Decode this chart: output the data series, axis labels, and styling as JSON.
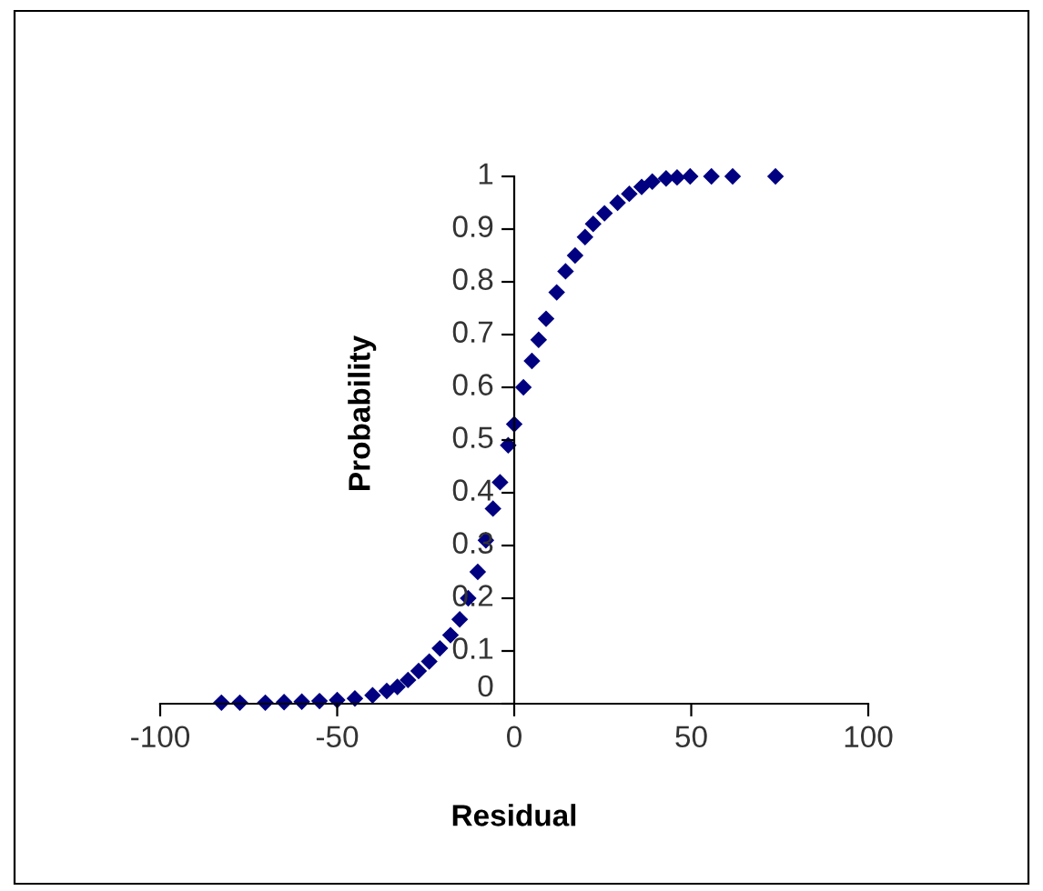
{
  "chart_data": {
    "type": "scatter",
    "xlabel": "Residual",
    "ylabel": "Probability",
    "x": [
      -82.7,
      -77.5,
      -70.3,
      -65,
      -60,
      -55,
      -50,
      -45,
      -40,
      -36,
      -33,
      -30,
      -27,
      -24,
      -21,
      -18,
      -15.4,
      -13,
      -10.3,
      -8,
      -6,
      -4,
      -1.7,
      0,
      2.6,
      5,
      6.9,
      9,
      12,
      14.5,
      17.2,
      20,
      22.3,
      25.5,
      29.2,
      32.5,
      36,
      39,
      42.9,
      46,
      49.7,
      55.7,
      61.7,
      73.8
    ],
    "series": [
      {
        "color": "#000080",
        "values": [
          0.002,
          0.002,
          0.002,
          0.003,
          0.004,
          0.005,
          0.007,
          0.01,
          0.016,
          0.024,
          0.032,
          0.045,
          0.062,
          0.08,
          0.105,
          0.13,
          0.16,
          0.2,
          0.25,
          0.31,
          0.37,
          0.42,
          0.49,
          0.53,
          0.6,
          0.65,
          0.69,
          0.73,
          0.78,
          0.82,
          0.85,
          0.885,
          0.91,
          0.93,
          0.95,
          0.967,
          0.98,
          0.99,
          0.996,
          0.998,
          1,
          1,
          1,
          1
        ]
      }
    ],
    "xlim": [
      -100,
      100
    ],
    "xticks": [
      -100,
      -50,
      0,
      50,
      100
    ],
    "ylim": [
      0,
      1
    ],
    "yticks": [
      0,
      0.1,
      0.2,
      0.3,
      0.4,
      0.5,
      0.6,
      0.7,
      0.8,
      0.9,
      1
    ],
    "marker": "diamond",
    "grid": false,
    "legend": false
  }
}
